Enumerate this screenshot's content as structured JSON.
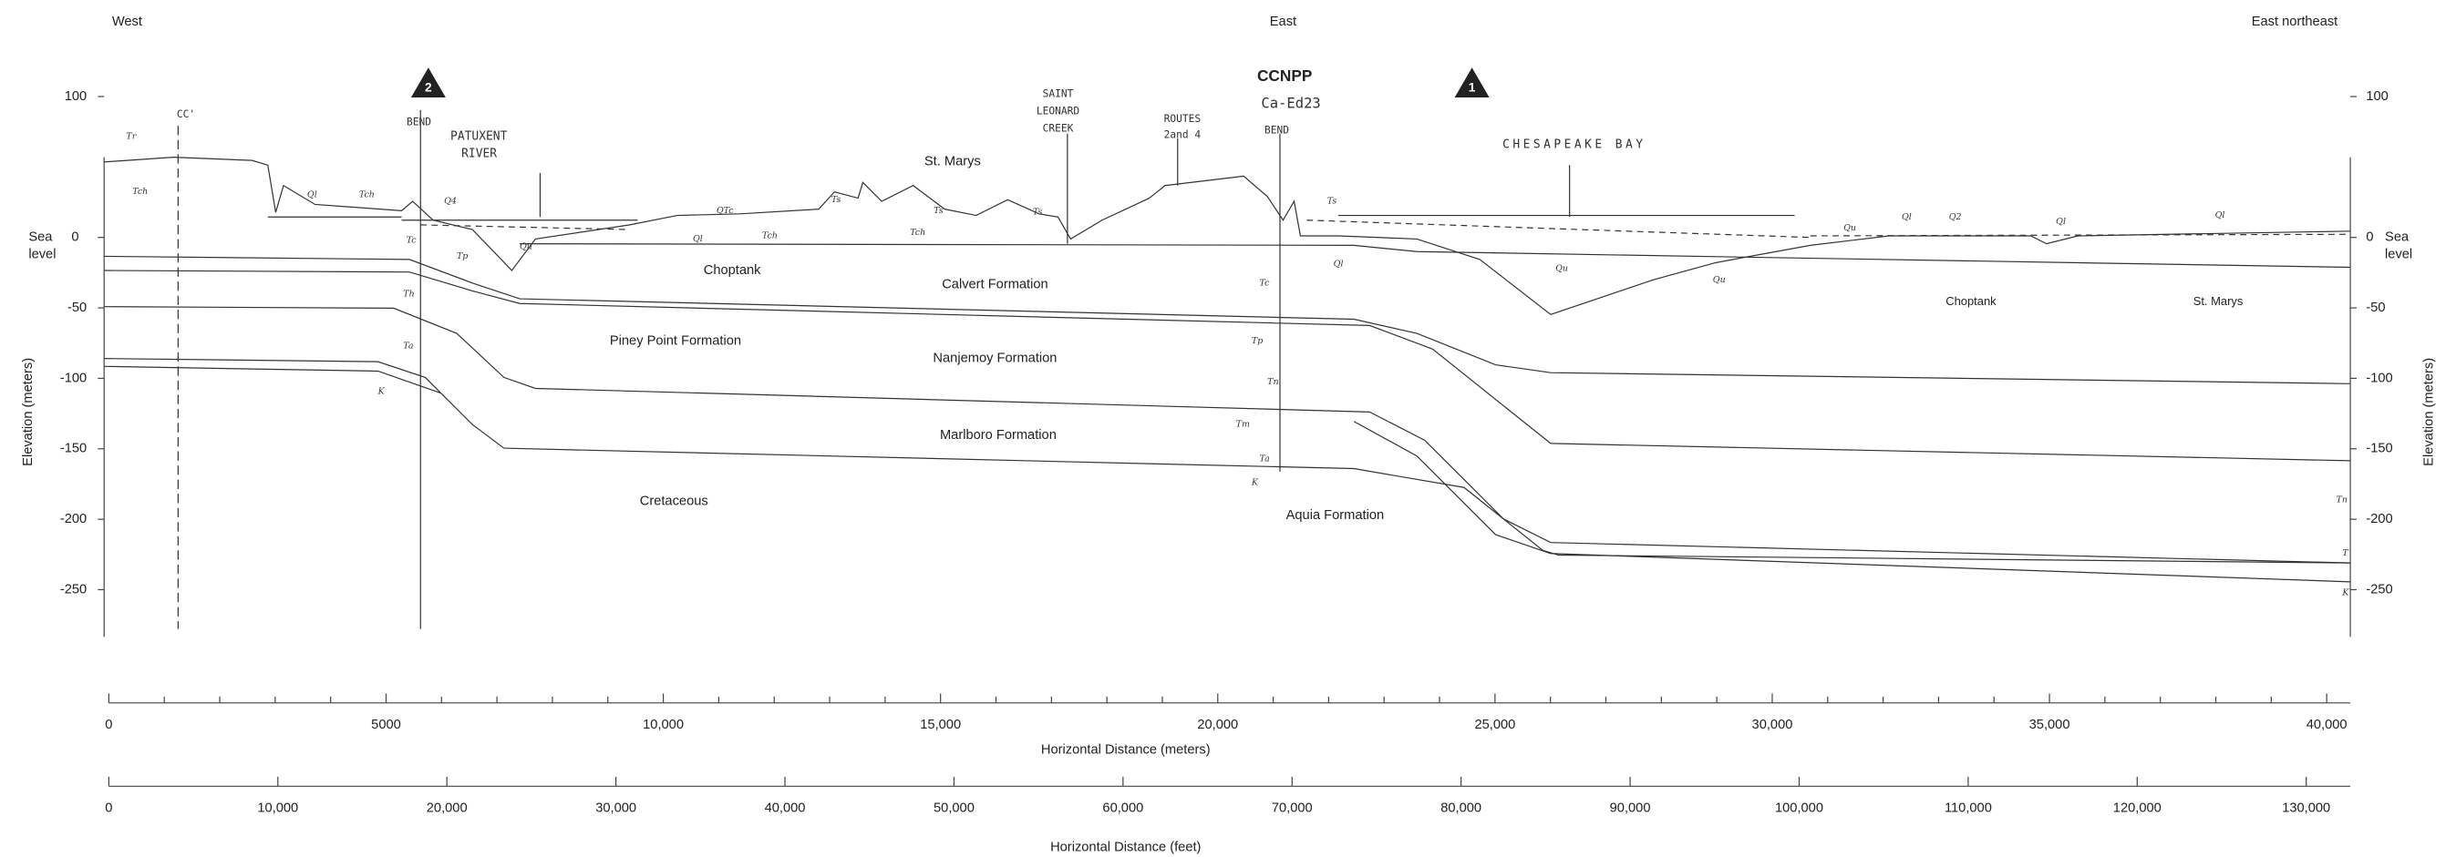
{
  "header": {
    "left": "West",
    "center": "East",
    "right": "East northeast"
  },
  "markers": [
    "2",
    "1"
  ],
  "site": {
    "name": "CCNPP",
    "well": "Ca-Ed23",
    "bend": "BEND"
  },
  "place_labels": {
    "section": "CC'",
    "bend": "BEND",
    "river": [
      "PATUXENT",
      "RIVER"
    ],
    "creek": [
      "SAINT",
      "LEONARD",
      "CREEK"
    ],
    "routes": [
      "ROUTES",
      "2and 4"
    ],
    "bay": "CHESAPEAKE  BAY"
  },
  "formations": [
    "St. Marys",
    "Choptank",
    "Calvert Formation",
    "Piney Point Formation",
    "Nanjemoy Formation",
    "Marlboro Formation",
    "Cretaceous",
    "Aquia Formation",
    "Choptank",
    "St. Marys"
  ],
  "unit_symbols": [
    "Tr",
    "Tch",
    "Ql",
    "Tch",
    "Q4",
    "Tc",
    "Tp",
    "Th",
    "Ta",
    "K",
    "Qu",
    "QTc",
    "Ql",
    "Tch",
    "Ts",
    "Ts",
    "Tch",
    "Ts",
    "Tc",
    "Tp",
    "Tn",
    "Tm",
    "Ta",
    "K",
    "Ts",
    "Ql",
    "Qu",
    "Qu",
    "Qu",
    "Ql",
    "Q2",
    "Ql",
    "Ql",
    "Tn",
    "T",
    "K"
  ],
  "elevation_axis": {
    "title": "Elevation (meters)",
    "sea": "Sea",
    "level": "level",
    "ticks": [
      "100",
      "0",
      "-50",
      "-100",
      "-150",
      "-200",
      "-250"
    ]
  },
  "distance_axes": [
    {
      "title": "Horizontal Distance (meters)",
      "ticks": [
        "0",
        "5000",
        "10,000",
        "15,000",
        "20,000",
        "25,000",
        "30,000",
        "35,000",
        "40,000"
      ]
    },
    {
      "title": "Horizontal Distance (feet)",
      "ticks": [
        "0",
        "10,000",
        "20,000",
        "30,000",
        "40,000",
        "50,000",
        "60,000",
        "70,000",
        "80,000",
        "90,000",
        "100,000",
        "110,000",
        "120,000",
        "130,000"
      ]
    }
  ]
}
